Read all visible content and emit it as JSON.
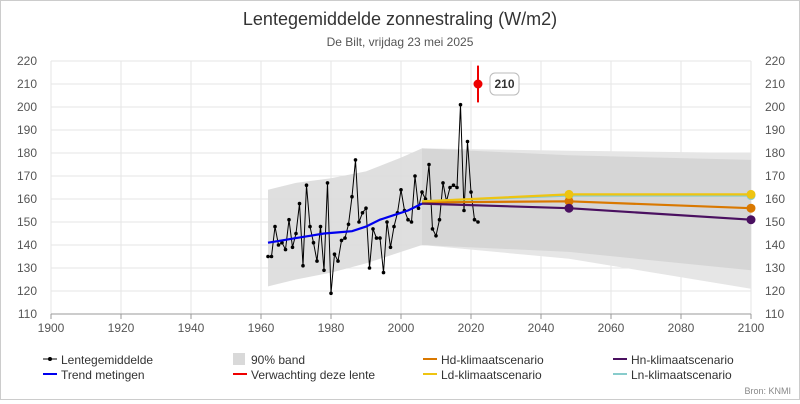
{
  "chart_data": {
    "type": "line",
    "title": "Lentegemiddelde zonnestraling (W/m2)",
    "subtitle": "De Bilt, vrijdag 23 mei 2025",
    "xlim": [
      1900,
      2100
    ],
    "ylim": [
      110,
      220
    ],
    "x_ticks": [
      1900,
      1920,
      1940,
      1960,
      1980,
      2000,
      2020,
      2040,
      2060,
      2080,
      2100
    ],
    "y_ticks": [
      110,
      120,
      130,
      140,
      150,
      160,
      170,
      180,
      190,
      200,
      210,
      220
    ],
    "grid": true,
    "legend_position": "bottom",
    "source": "Bron: KNMI",
    "series": [
      {
        "name": "Lentegemiddelde",
        "color": "#000000",
        "x": [
          1962,
          1963,
          1964,
          1965,
          1966,
          1967,
          1968,
          1969,
          1970,
          1971,
          1972,
          1973,
          1974,
          1975,
          1976,
          1977,
          1978,
          1979,
          1980,
          1981,
          1982,
          1983,
          1984,
          1985,
          1986,
          1987,
          1988,
          1989,
          1990,
          1991,
          1992,
          1993,
          1994,
          1995,
          1996,
          1997,
          1998,
          1999,
          2000,
          2001,
          2002,
          2003,
          2004,
          2005,
          2006,
          2007,
          2008,
          2009,
          2010,
          2011,
          2012,
          2013,
          2014,
          2015,
          2016,
          2017,
          2018,
          2019,
          2020,
          2021,
          2022
        ],
        "values": [
          135,
          135,
          148,
          140,
          141,
          138,
          151,
          139,
          145,
          158,
          131,
          166,
          148,
          141,
          133,
          148,
          129,
          167,
          119,
          136,
          133,
          142,
          143,
          149,
          161,
          177,
          150,
          154,
          156,
          130,
          147,
          143,
          143,
          128,
          150,
          139,
          148,
          154,
          164,
          155,
          151,
          150,
          170,
          156,
          163,
          160,
          175,
          147,
          144,
          151,
          167,
          159,
          165,
          166,
          165,
          201,
          155,
          185,
          163,
          151,
          150
        ]
      },
      {
        "name": "Trend metingen",
        "color": "#0000ee",
        "x": [
          1962,
          1966,
          1970,
          1974,
          1978,
          1982,
          1986,
          1990,
          1994,
          1998,
          2002,
          2006
        ],
        "values": [
          141,
          142,
          143,
          144,
          145,
          145.5,
          146,
          148,
          151,
          153,
          155,
          158
        ]
      },
      {
        "name": "Hd-klimaatscenario",
        "color": "#d97800",
        "x": [
          2006,
          2048,
          2100
        ],
        "values": [
          158.5,
          159,
          156
        ]
      },
      {
        "name": "Hn-klimaatscenario",
        "color": "#4a1060",
        "x": [
          2006,
          2048,
          2100
        ],
        "values": [
          158,
          156,
          151
        ]
      },
      {
        "name": "Ld-klimaatscenario",
        "color": "#eec411",
        "x": [
          2006,
          2048,
          2100
        ],
        "values": [
          159,
          162,
          162
        ]
      },
      {
        "name": "Ln-klimaatscenario",
        "color": "#88cccc",
        "x": [
          2006,
          2048,
          2100
        ],
        "values": [
          159,
          161.5,
          161.5
        ]
      }
    ],
    "band_90": {
      "name": "90% band",
      "measured": {
        "x": [
          1962,
          1970,
          1980,
          1990,
          2000,
          2006
        ],
        "upper": [
          164,
          167,
          169,
          172,
          178,
          182
        ],
        "lower": [
          122,
          125,
          128,
          132,
          137,
          140
        ]
      },
      "scenario_outer": {
        "x": [
          2006,
          2048,
          2100
        ],
        "upper": [
          182,
          181,
          180
        ],
        "lower": [
          140,
          134,
          121
        ]
      },
      "scenario_inner": {
        "x": [
          2006,
          2048,
          2100
        ],
        "upper": [
          182,
          179,
          177
        ],
        "lower": [
          140,
          137,
          129
        ]
      }
    },
    "forecast": {
      "name": "Verwachting deze lente",
      "color": "#ee0000",
      "x": 2022,
      "value": 210,
      "low": 202,
      "high": 218,
      "label": "210"
    }
  }
}
